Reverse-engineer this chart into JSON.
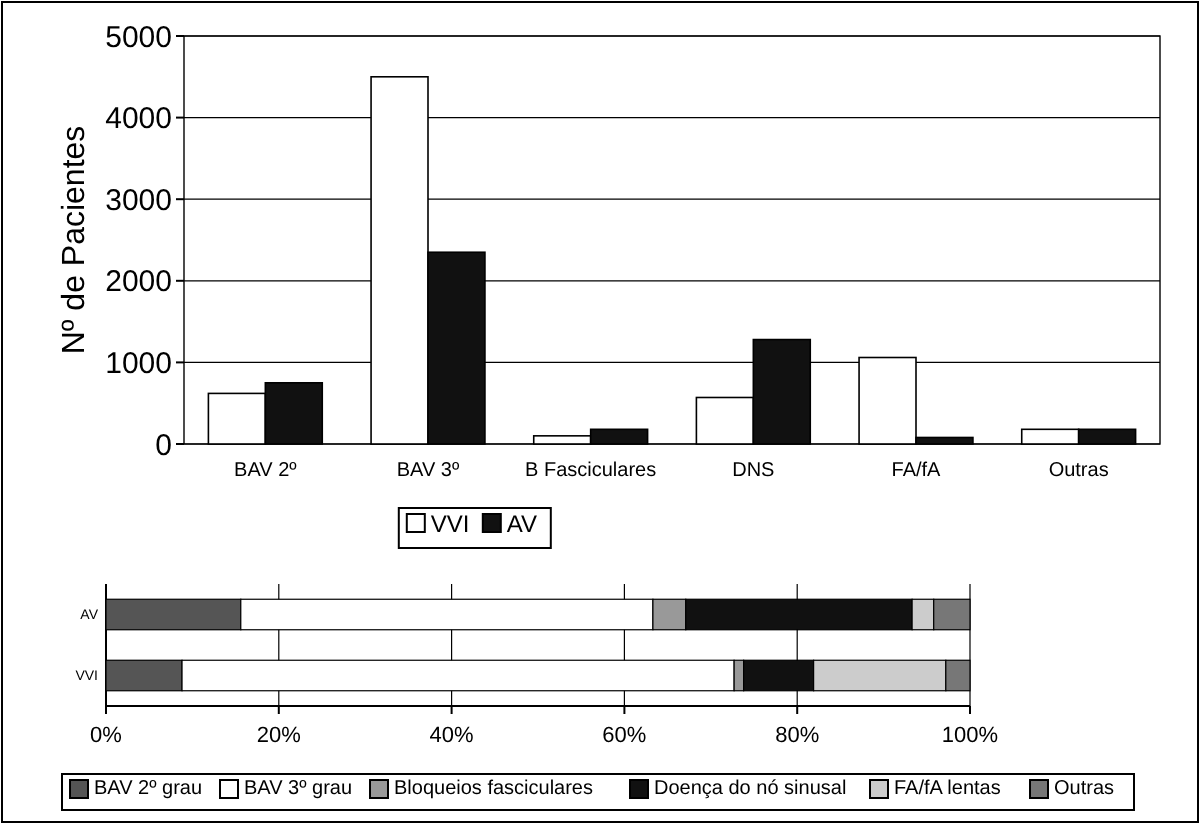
{
  "chart_data": [
    {
      "type": "bar",
      "ylabel": "Nº de Pacientes",
      "categories": [
        "BAV 2º",
        "BAV 3º",
        "B Fasciculares",
        "DNS",
        "FA/fA",
        "Outras"
      ],
      "series": [
        {
          "name": "VVI",
          "color": "#ffffff",
          "values": [
            620,
            4500,
            100,
            570,
            1060,
            180
          ]
        },
        {
          "name": "AV",
          "color": "#111111",
          "values": [
            750,
            2350,
            180,
            1280,
            80,
            180
          ]
        }
      ],
      "ylim": [
        0,
        5000
      ],
      "yticks": [
        0,
        1000,
        2000,
        3000,
        4000,
        5000
      ],
      "grid": "y",
      "legend": "bottom"
    },
    {
      "type": "bar",
      "orientation": "horizontal",
      "stacked": true,
      "categories": [
        "AV",
        "VVI"
      ],
      "series": [
        {
          "name": "BAV 2º grau",
          "color": "#555555",
          "values": [
            15.6,
            8.8
          ]
        },
        {
          "name": "BAV 3º grau",
          "color": "#ffffff",
          "values": [
            47.7,
            63.9
          ]
        },
        {
          "name": "Bloqueios fasciculares",
          "color": "#999999",
          "values": [
            3.8,
            1.1
          ]
        },
        {
          "name": "Doença do nó sinusal",
          "color": "#111111",
          "values": [
            26.2,
            8.1
          ]
        },
        {
          "name": "FA/fA lentas",
          "color": "#cccccc",
          "values": [
            2.5,
            15.3
          ]
        },
        {
          "name": "Outras",
          "color": "#777777",
          "values": [
            4.2,
            2.8
          ]
        }
      ],
      "xlim": [
        0,
        100
      ],
      "xticks": [
        {
          "value": 0,
          "label": "0%"
        },
        {
          "value": 20,
          "label": "20%"
        },
        {
          "value": 40,
          "label": "40%"
        },
        {
          "value": 60,
          "label": "60%"
        },
        {
          "value": 80,
          "label": "80%"
        },
        {
          "value": 100,
          "label": "100%"
        }
      ],
      "grid": "x",
      "legend": "bottom"
    }
  ]
}
